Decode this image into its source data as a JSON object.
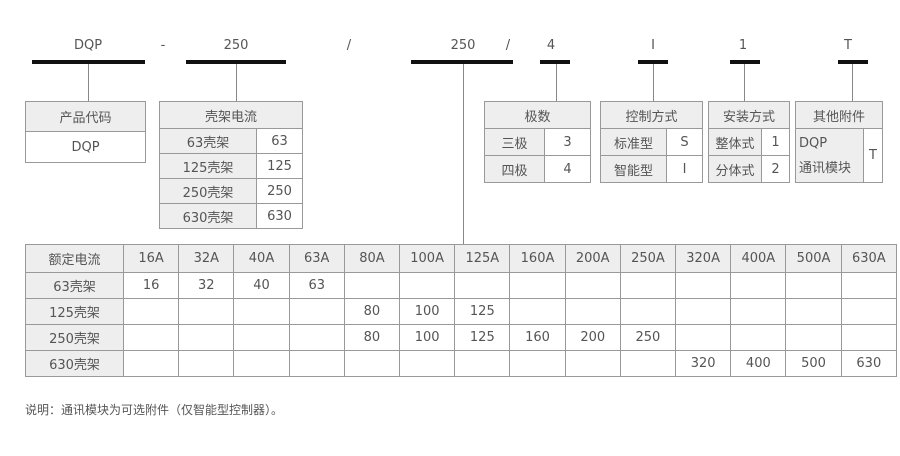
{
  "model_code": {
    "parts": [
      "DQP",
      "-",
      "250",
      "/",
      "250",
      "/",
      "4",
      "I",
      "1",
      "T"
    ]
  },
  "product_code": {
    "header": "产品代码",
    "value": "DQP"
  },
  "frame_current": {
    "header": "壳架电流",
    "rows": [
      [
        "63壳架",
        "63"
      ],
      [
        "125壳架",
        "125"
      ],
      [
        "250壳架",
        "250"
      ],
      [
        "630壳架",
        "630"
      ]
    ]
  },
  "poles": {
    "header": "极数",
    "rows": [
      [
        "三极",
        "3"
      ],
      [
        "四极",
        "4"
      ]
    ]
  },
  "control": {
    "header": "控制方式",
    "rows": [
      [
        "标准型",
        "S"
      ],
      [
        "智能型",
        "I"
      ]
    ]
  },
  "install": {
    "header": "安装方式",
    "rows": [
      [
        "整体式",
        "1"
      ],
      [
        "分体式",
        "2"
      ]
    ]
  },
  "accessory": {
    "header": "其他附件",
    "label_line1": "DQP",
    "label_line2": "通讯模块",
    "value": "T"
  },
  "rated_table": {
    "header": [
      "额定电流",
      "16A",
      "32A",
      "40A",
      "63A",
      "80A",
      "100A",
      "125A",
      "160A",
      "200A",
      "250A",
      "320A",
      "400A",
      "500A",
      "630A"
    ],
    "rows": [
      [
        "63壳架",
        "16",
        "32",
        "40",
        "63",
        "",
        "",
        "",
        "",
        "",
        "",
        "",
        "",
        "",
        ""
      ],
      [
        "125壳架",
        "",
        "",
        "",
        "",
        "80",
        "100",
        "125",
        "",
        "",
        "",
        "",
        "",
        "",
        ""
      ],
      [
        "250壳架",
        "",
        "",
        "",
        "",
        "80",
        "100",
        "125",
        "160",
        "200",
        "250",
        "",
        "",
        "",
        ""
      ],
      [
        "630壳架",
        "",
        "",
        "",
        "",
        "",
        "",
        "",
        "",
        "",
        "",
        "320",
        "400",
        "500",
        "630"
      ]
    ]
  },
  "note": "说明：通讯模块为可选附件（仅智能型控制器）。"
}
